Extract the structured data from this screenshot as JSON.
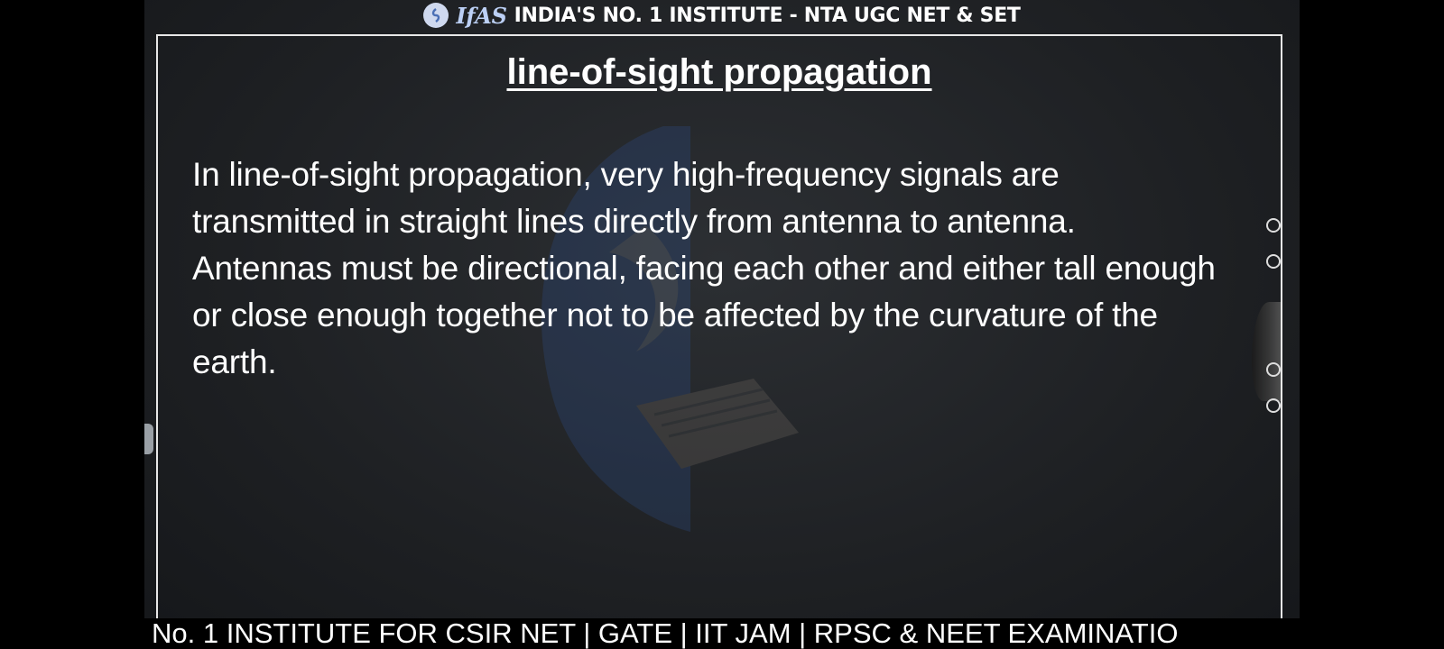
{
  "banner": {
    "brand": "IfAS",
    "tagline": "INDIA'S NO. 1 INSTITUTE - NTA UGC NET & SET"
  },
  "slide": {
    "title": "line-of-sight propagation",
    "body": "In line-of-sight propagation, very high-frequency signals are transmitted in straight lines directly from antenna to antenna. Antennas must be directional, facing each other and either tall enough or close enough together not to be affected by the curvature of the earth."
  },
  "ticker": {
    "text": "No. 1  INSTITUTE FOR CSIR NET | GATE | IIT JAM | RPSC & NEET EXAMINATIO"
  },
  "icons": [
    "play-icon",
    "pen-icon",
    "undo-icon",
    "settings-icon",
    "brand-logo-icon",
    "watermark-logo-icon"
  ],
  "colors": {
    "board_bg": "#1e2023",
    "text": "#ffffff",
    "brand_accent": "#bcd0f5"
  }
}
